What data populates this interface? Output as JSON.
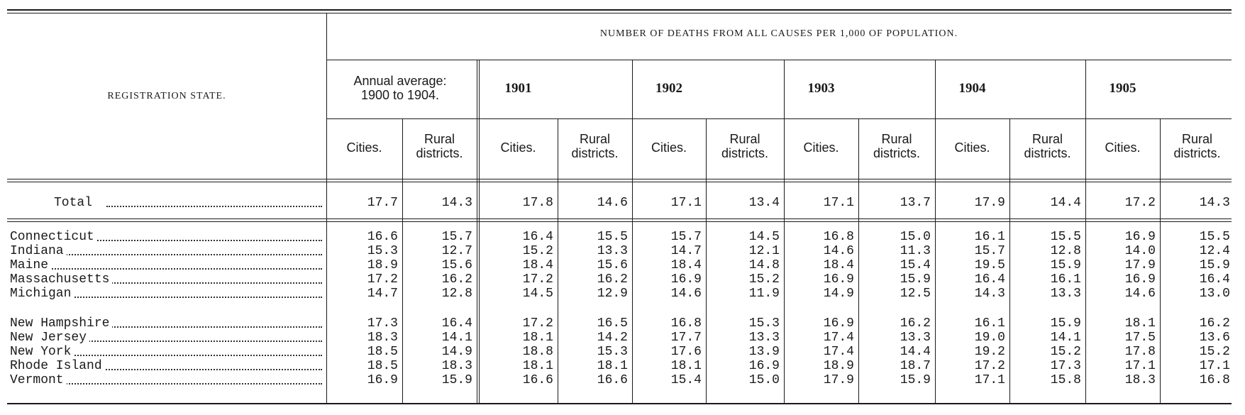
{
  "table": {
    "main_heading": "NUMBER OF DEATHS FROM ALL CAUSES PER 1,000 OF POPULATION.",
    "state_heading": "REGISTRATION STATE.",
    "annual_heading_line1": "Annual average:",
    "annual_heading_line2": "1900 to 1904.",
    "years": [
      "1901",
      "1902",
      "1903",
      "1904",
      "1905"
    ],
    "sub_cities": "Cities.",
    "sub_rural_line1": "Rural",
    "sub_rural_line2": "districts.",
    "total_label": "Total",
    "total_values": [
      "17.7",
      "14.3",
      "17.8",
      "14.6",
      "17.1",
      "13.4",
      "17.1",
      "13.7",
      "17.9",
      "14.4",
      "17.2",
      "14.3"
    ],
    "rows": [
      {
        "state": "Connecticut",
        "values": [
          "16.6",
          "15.7",
          "16.4",
          "15.5",
          "15.7",
          "14.5",
          "16.8",
          "15.0",
          "16.1",
          "15.5",
          "16.9",
          "15.5"
        ]
      },
      {
        "state": "Indiana",
        "values": [
          "15.3",
          "12.7",
          "15.2",
          "13.3",
          "14.7",
          "12.1",
          "14.6",
          "11.3",
          "15.7",
          "12.8",
          "14.0",
          "12.4"
        ]
      },
      {
        "state": "Maine",
        "values": [
          "18.9",
          "15.6",
          "18.4",
          "15.6",
          "18.4",
          "14.8",
          "18.4",
          "15.4",
          "19.5",
          "15.9",
          "17.9",
          "15.9"
        ]
      },
      {
        "state": "Massachusetts",
        "values": [
          "17.2",
          "16.2",
          "17.2",
          "16.2",
          "16.9",
          "15.2",
          "16.9",
          "15.9",
          "16.4",
          "16.1",
          "16.9",
          "16.4"
        ]
      },
      {
        "state": "Michigan",
        "values": [
          "14.7",
          "12.8",
          "14.5",
          "12.9",
          "14.6",
          "11.9",
          "14.9",
          "12.5",
          "14.3",
          "13.3",
          "14.6",
          "13.0"
        ]
      },
      {
        "state": "New Hampshire",
        "values": [
          "17.3",
          "16.4",
          "17.2",
          "16.5",
          "16.8",
          "15.3",
          "16.9",
          "16.2",
          "16.1",
          "15.9",
          "18.1",
          "16.2"
        ]
      },
      {
        "state": "New Jersey",
        "values": [
          "18.3",
          "14.1",
          "18.1",
          "14.2",
          "17.7",
          "13.3",
          "17.4",
          "13.3",
          "19.0",
          "14.1",
          "17.5",
          "13.6"
        ]
      },
      {
        "state": "New York",
        "values": [
          "18.5",
          "14.9",
          "18.8",
          "15.3",
          "17.6",
          "13.9",
          "17.4",
          "14.4",
          "19.2",
          "15.2",
          "17.8",
          "15.2"
        ]
      },
      {
        "state": "Rhode Island",
        "values": [
          "18.5",
          "18.3",
          "18.1",
          "18.1",
          "18.1",
          "16.9",
          "18.9",
          "18.7",
          "17.2",
          "17.3",
          "17.1",
          "17.1"
        ]
      },
      {
        "state": "Vermont",
        "values": [
          "16.9",
          "15.9",
          "16.6",
          "16.6",
          "15.4",
          "15.0",
          "17.9",
          "15.9",
          "17.1",
          "15.8",
          "18.3",
          "16.8"
        ]
      }
    ]
  }
}
